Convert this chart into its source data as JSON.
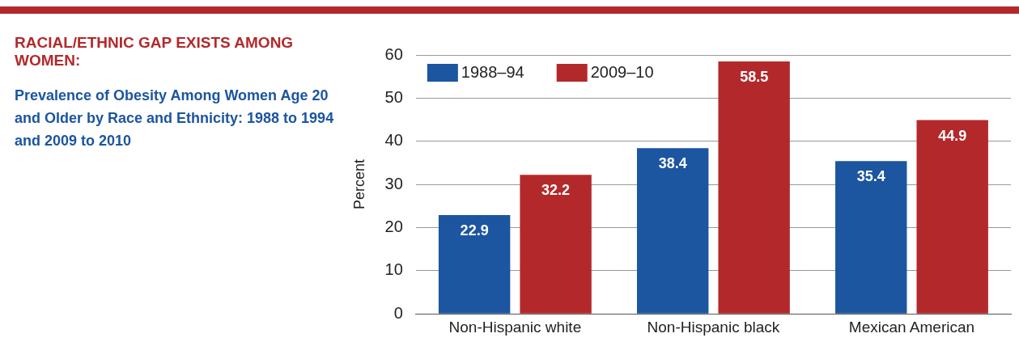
{
  "chart_data": {
    "type": "bar",
    "title": "RACIAL/ETHNIC GAP EXISTS AMONG WOMEN:",
    "subtitle": "Prevalence of Obesity Among Women Age 20 and Older by Race and Ethnicity: 1988 to 1994 and 2009 to 2010",
    "ylabel": "Percent",
    "categories": [
      "Non-Hispanic white",
      "Non-Hispanic black",
      "Mexican American"
    ],
    "series": [
      {
        "name": "1988–94",
        "color": "#1c55a0",
        "values": [
          22.9,
          38.4,
          35.4
        ]
      },
      {
        "name": "2009–10",
        "color": "#b3292b",
        "values": [
          32.2,
          58.5,
          44.9
        ]
      }
    ],
    "ylim": [
      0,
      60
    ],
    "yticks": [
      0,
      10,
      20,
      30,
      40,
      50,
      60
    ],
    "grid": "y",
    "legend": "top left",
    "data_labels": true
  }
}
